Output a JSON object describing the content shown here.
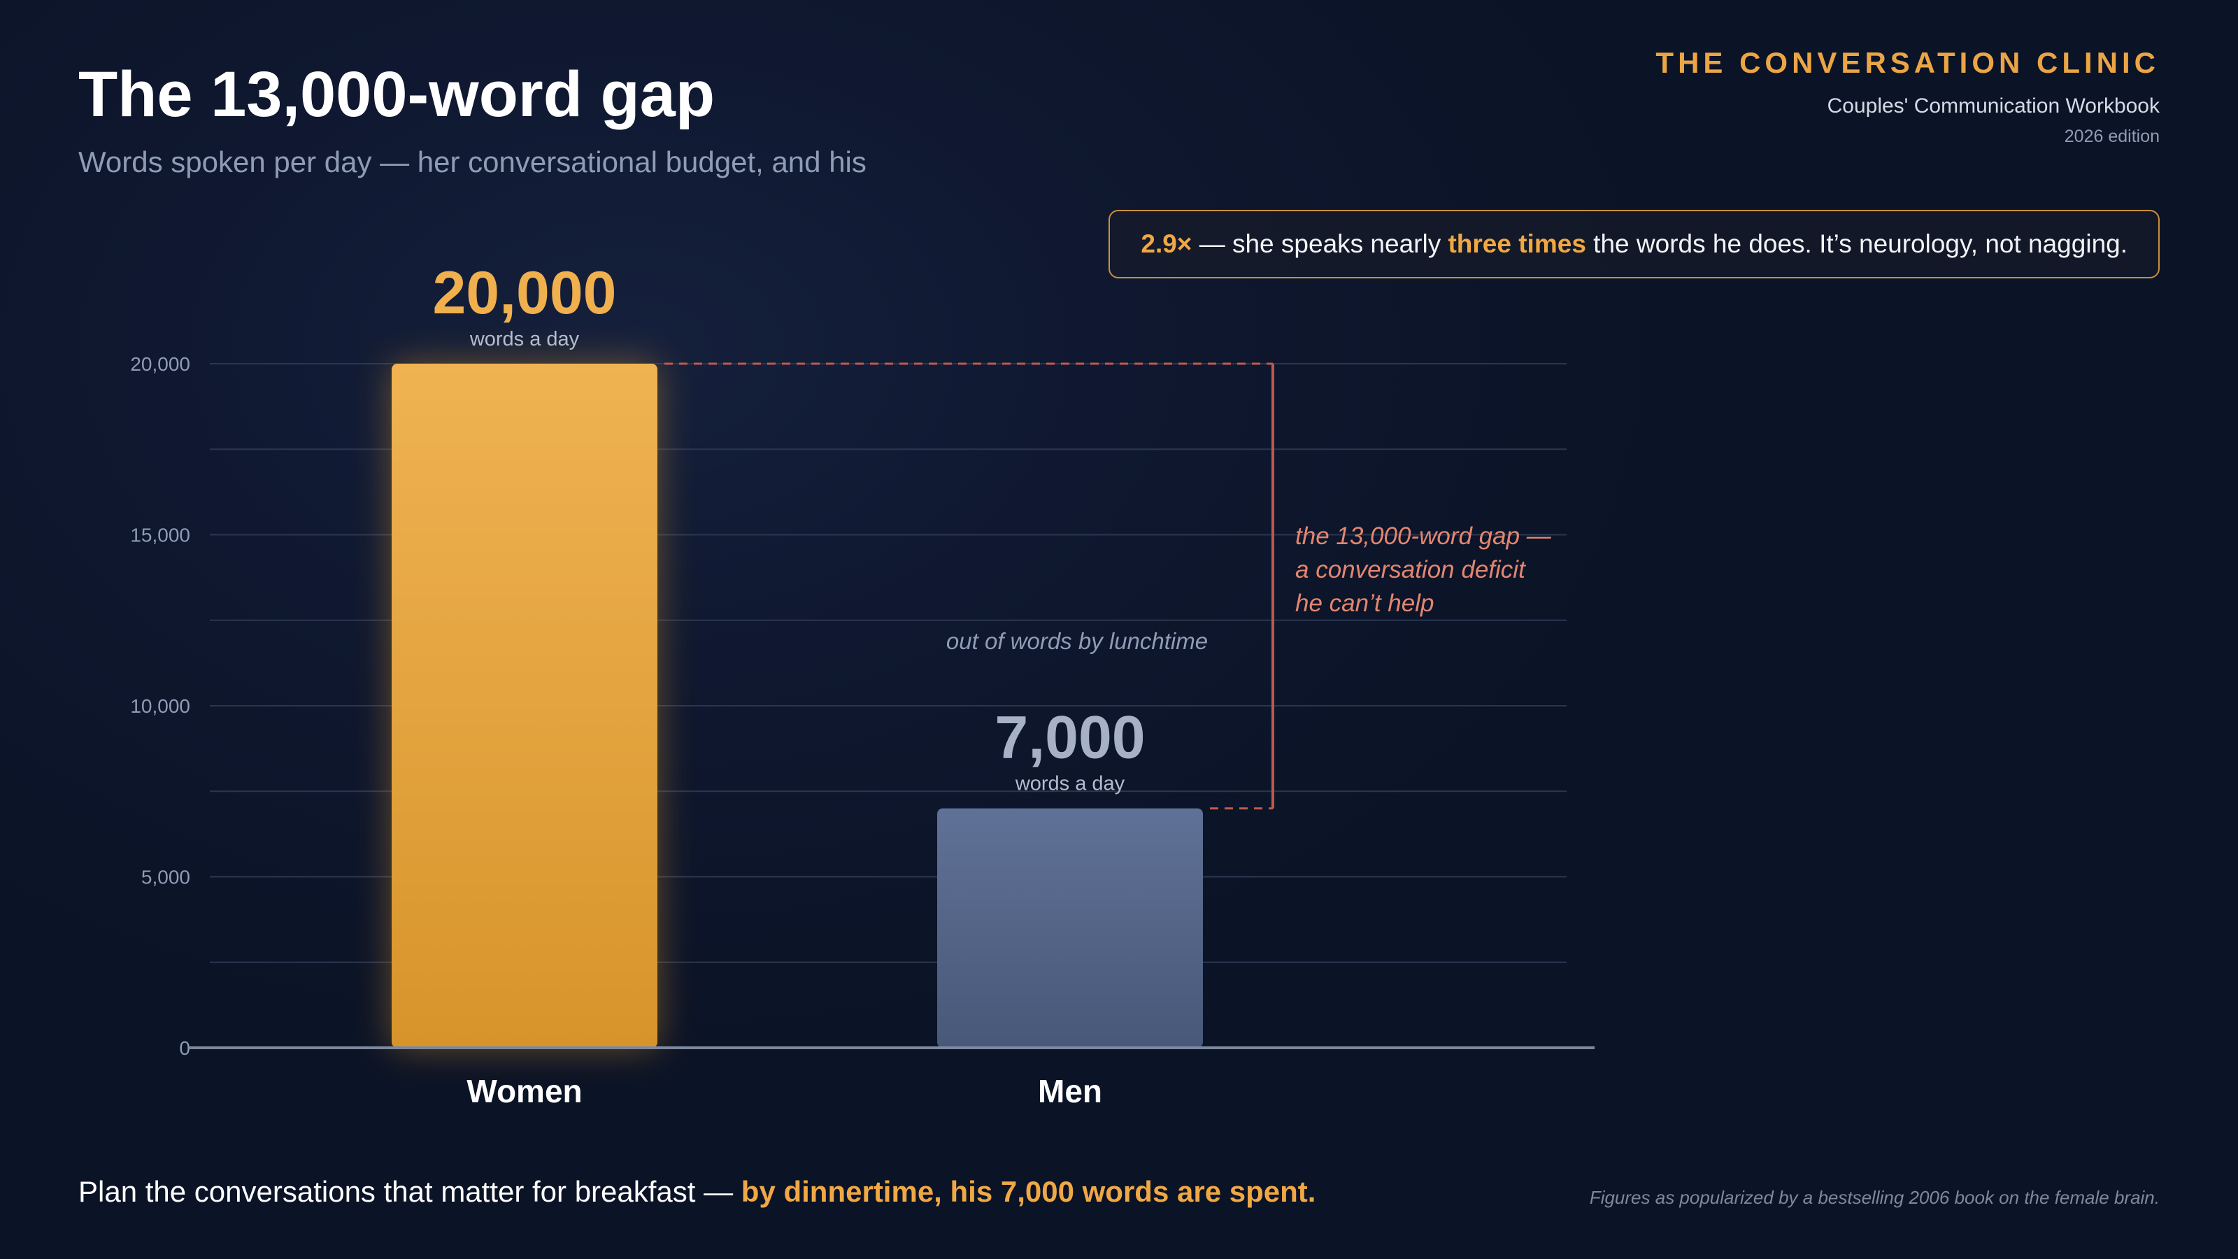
{
  "header": {
    "title": "The 13,000-word gap",
    "subtitle": "Words spoken per day — her conversational budget, and his"
  },
  "brand": {
    "name": "THE CONVERSATION CLINIC",
    "workbook": "Couples' Communication Workbook",
    "edition": "2026 edition"
  },
  "callout": {
    "ratio": "2.9×",
    "text_before": " — she speaks nearly ",
    "highlight": "three times",
    "text_after": " the words he does. It’s neurology, not nagging."
  },
  "chart_data": {
    "type": "bar",
    "categories": [
      "Women",
      "Men"
    ],
    "values": [
      20000,
      7000
    ],
    "value_labels": [
      "20,000",
      "7,000"
    ],
    "value_unit_label": "words a day",
    "ylim": [
      0,
      20000
    ],
    "yticks": [
      0,
      5000,
      10000,
      15000,
      20000
    ],
    "ytick_labels": [
      "0",
      "5,000",
      "10,000",
      "15,000",
      "20,000"
    ],
    "grid": true,
    "annotations": {
      "men_note": "out of words by lunchtime",
      "gap_lines": [
        "the 13,000-word gap —",
        "a conversation deficit",
        "he can’t help"
      ]
    }
  },
  "colors": {
    "women_bar_top": "#efb352",
    "women_bar_bottom": "#d8942b",
    "men_bar_top": "#5f7196",
    "men_bar_bottom": "#485879",
    "women_value": "#f0b04e",
    "men_value": "#a6b1c6",
    "gap_line": "#c0594c",
    "gap_text": "#e38670"
  },
  "footer": {
    "lead": "Plan the conversations that matter for breakfast — ",
    "highlight": "by dinnertime, his 7,000 words are spent.",
    "source": "Figures as popularized by a bestselling 2006 book on the female brain."
  }
}
